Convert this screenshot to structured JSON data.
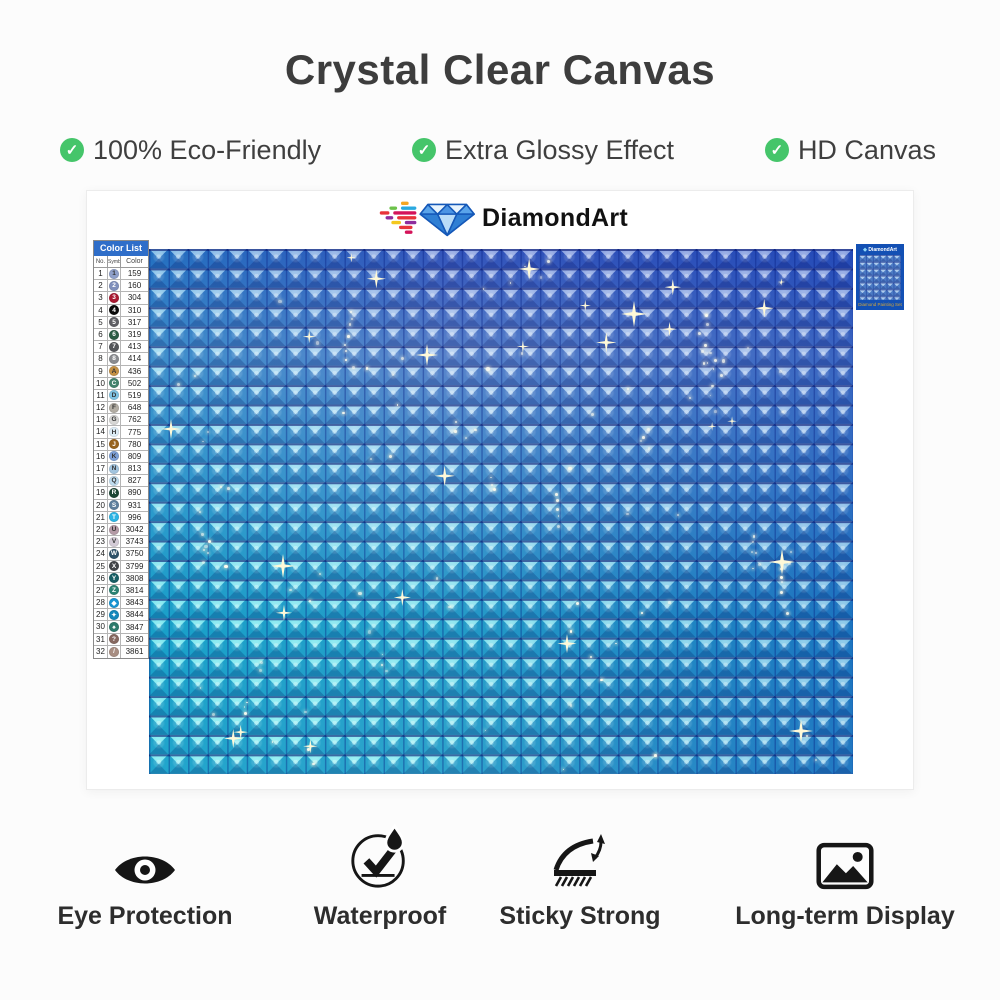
{
  "title": "Crystal Clear Canvas",
  "icons": {
    "check": "✓"
  },
  "features": [
    {
      "label": "100% Eco-Friendly"
    },
    {
      "label": "Extra Glossy Effect"
    },
    {
      "label": "HD Canvas"
    }
  ],
  "brand": {
    "name": "DiamondArt",
    "thumbnail_caption": "Diamond Painting Set"
  },
  "color_list": {
    "title": "Color List",
    "columns": {
      "no": "No.",
      "symbol": "Symbol",
      "color": "Color"
    },
    "rows": [
      {
        "no": "1",
        "symbol": "1",
        "code": "159",
        "swatch": "#8e9fc9"
      },
      {
        "no": "2",
        "symbol": "2",
        "code": "160",
        "swatch": "#8090bc"
      },
      {
        "no": "3",
        "symbol": "3",
        "code": "304",
        "swatch": "#a91a32"
      },
      {
        "no": "4",
        "symbol": "4",
        "code": "310",
        "swatch": "#0a0a0a"
      },
      {
        "no": "5",
        "symbol": "5",
        "code": "317",
        "swatch": "#5f5f64"
      },
      {
        "no": "6",
        "symbol": "6",
        "code": "319",
        "swatch": "#2a5c44"
      },
      {
        "no": "7",
        "symbol": "7",
        "code": "413",
        "swatch": "#54565a"
      },
      {
        "no": "8",
        "symbol": "8",
        "code": "414",
        "swatch": "#898b8f"
      },
      {
        "no": "9",
        "symbol": "A",
        "code": "436",
        "swatch": "#c39045"
      },
      {
        "no": "10",
        "symbol": "C",
        "code": "502",
        "swatch": "#43836d"
      },
      {
        "no": "11",
        "symbol": "D",
        "code": "519",
        "swatch": "#7fc2e2"
      },
      {
        "no": "12",
        "symbol": "F",
        "code": "648",
        "swatch": "#b2ada3"
      },
      {
        "no": "13",
        "symbol": "G",
        "code": "762",
        "swatch": "#d7d7d5"
      },
      {
        "no": "14",
        "symbol": "H",
        "code": "775",
        "swatch": "#dcecf6"
      },
      {
        "no": "15",
        "symbol": "J",
        "code": "780",
        "swatch": "#96621d"
      },
      {
        "no": "16",
        "symbol": "K",
        "code": "809",
        "swatch": "#7c9fd6"
      },
      {
        "no": "17",
        "symbol": "N",
        "code": "813",
        "swatch": "#a2c4de"
      },
      {
        "no": "18",
        "symbol": "Q",
        "code": "827",
        "swatch": "#bfdcee"
      },
      {
        "no": "19",
        "symbol": "R",
        "code": "890",
        "swatch": "#1c4634"
      },
      {
        "no": "20",
        "symbol": "S",
        "code": "931",
        "swatch": "#5e7f9d"
      },
      {
        "no": "21",
        "symbol": "T",
        "code": "996",
        "swatch": "#2cb4e4"
      },
      {
        "no": "22",
        "symbol": "U",
        "code": "3042",
        "swatch": "#b49aa6"
      },
      {
        "no": "23",
        "symbol": "V",
        "code": "3743",
        "swatch": "#d3cbd6"
      },
      {
        "no": "24",
        "symbol": "W",
        "code": "3750",
        "swatch": "#2d5168"
      },
      {
        "no": "25",
        "symbol": "X",
        "code": "3799",
        "swatch": "#424549"
      },
      {
        "no": "26",
        "symbol": "Y",
        "code": "3808",
        "swatch": "#175e64"
      },
      {
        "no": "27",
        "symbol": "Z",
        "code": "3814",
        "swatch": "#2b8273"
      },
      {
        "no": "28",
        "symbol": "◆",
        "code": "3843",
        "swatch": "#1793d1"
      },
      {
        "no": "29",
        "symbol": "✦",
        "code": "3844",
        "swatch": "#1487ba"
      },
      {
        "no": "30",
        "symbol": "♠",
        "code": "3847",
        "swatch": "#2c7a6b"
      },
      {
        "no": "31",
        "symbol": "?",
        "code": "3860",
        "swatch": "#86685f"
      },
      {
        "no": "32",
        "symbol": "/",
        "code": "3861",
        "swatch": "#a88e82"
      }
    ]
  },
  "bottom_features": [
    {
      "label": "Eye Protection",
      "icon": "eye-icon"
    },
    {
      "label": "Waterproof",
      "icon": "waterproof-icon"
    },
    {
      "label": "Sticky Strong",
      "icon": "sticky-strong-icon"
    },
    {
      "label": "Long-term Display",
      "icon": "long-term-display-icon"
    }
  ],
  "theme": {
    "accent_green": "#45c56a",
    "title_color": "#3d3d3d",
    "text_color": "#3f3f3f",
    "label_color": "#2d2d2d",
    "table_header_bg": "#2f6ec9",
    "thumb_bg": "#1350b4",
    "thumb_caption_color": "#d8a838",
    "canvas_top": "#4468ce",
    "canvas_upper": "#7cace6",
    "canvas_mid": "#5cc2e8",
    "canvas_lower": "#2ed2e2",
    "canvas_bottom": "#40dce8",
    "canvas_left_tint": "rgba(0,225,230,0.32)",
    "canvas_right_tint": "rgba(20,70,195,0.42)",
    "canvas_hline": "rgba(4,20,110,0.60)",
    "canvas_vline": "rgba(6,30,130,0.38)"
  }
}
